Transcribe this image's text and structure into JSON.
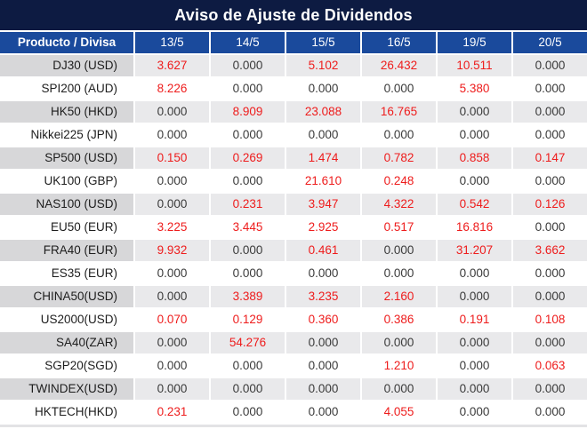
{
  "title": "Aviso de Ajuste de Dividendos",
  "chart_data": {
    "type": "table",
    "title": "Aviso de Ajuste de Dividendos",
    "product_header": "Producto / Divisa",
    "date_headers": [
      "13/5",
      "14/5",
      "15/5",
      "16/5",
      "19/5",
      "20/5"
    ],
    "rows": [
      {
        "product": "DJ30 (USD)",
        "values": [
          "3.627",
          "0.000",
          "5.102",
          "26.432",
          "10.511",
          "0.000"
        ],
        "red": [
          true,
          false,
          true,
          true,
          true,
          false
        ]
      },
      {
        "product": "SPI200 (AUD)",
        "values": [
          "8.226",
          "0.000",
          "0.000",
          "0.000",
          "5.380",
          "0.000"
        ],
        "red": [
          true,
          false,
          false,
          false,
          true,
          false
        ]
      },
      {
        "product": "HK50 (HKD)",
        "values": [
          "0.000",
          "8.909",
          "23.088",
          "16.765",
          "0.000",
          "0.000"
        ],
        "red": [
          false,
          true,
          true,
          true,
          false,
          false
        ]
      },
      {
        "product": "Nikkei225 (JPN)",
        "values": [
          "0.000",
          "0.000",
          "0.000",
          "0.000",
          "0.000",
          "0.000"
        ],
        "red": [
          false,
          false,
          false,
          false,
          false,
          false
        ]
      },
      {
        "product": "SP500 (USD)",
        "values": [
          "0.150",
          "0.269",
          "1.474",
          "0.782",
          "0.858",
          "0.147"
        ],
        "red": [
          true,
          true,
          true,
          true,
          true,
          true
        ]
      },
      {
        "product": "UK100 (GBP)",
        "values": [
          "0.000",
          "0.000",
          "21.610",
          "0.248",
          "0.000",
          "0.000"
        ],
        "red": [
          false,
          false,
          true,
          true,
          false,
          false
        ]
      },
      {
        "product": "NAS100 (USD)",
        "values": [
          "0.000",
          "0.231",
          "3.947",
          "4.322",
          "0.542",
          "0.126"
        ],
        "red": [
          false,
          true,
          true,
          true,
          true,
          true
        ]
      },
      {
        "product": "EU50 (EUR)",
        "values": [
          "3.225",
          "3.445",
          "2.925",
          "0.517",
          "16.816",
          "0.000"
        ],
        "red": [
          true,
          true,
          true,
          true,
          true,
          false
        ]
      },
      {
        "product": "FRA40 (EUR)",
        "values": [
          "9.932",
          "0.000",
          "0.461",
          "0.000",
          "31.207",
          "3.662"
        ],
        "red": [
          true,
          false,
          true,
          false,
          true,
          true
        ]
      },
      {
        "product": "ES35 (EUR)",
        "values": [
          "0.000",
          "0.000",
          "0.000",
          "0.000",
          "0.000",
          "0.000"
        ],
        "red": [
          false,
          false,
          false,
          false,
          false,
          false
        ]
      },
      {
        "product": "CHINA50(USD)",
        "values": [
          "0.000",
          "3.389",
          "3.235",
          "2.160",
          "0.000",
          "0.000"
        ],
        "red": [
          false,
          true,
          true,
          true,
          false,
          false
        ]
      },
      {
        "product": "US2000(USD)",
        "values": [
          "0.070",
          "0.129",
          "0.360",
          "0.386",
          "0.191",
          "0.108"
        ],
        "red": [
          true,
          true,
          true,
          true,
          true,
          true
        ]
      },
      {
        "product": "SA40(ZAR)",
        "values": [
          "0.000",
          "54.276",
          "0.000",
          "0.000",
          "0.000",
          "0.000"
        ],
        "red": [
          false,
          true,
          false,
          false,
          false,
          false
        ]
      },
      {
        "product": "SGP20(SGD)",
        "values": [
          "0.000",
          "0.000",
          "0.000",
          "1.210",
          "0.000",
          "0.063"
        ],
        "red": [
          false,
          false,
          false,
          true,
          false,
          true
        ]
      },
      {
        "product": "TWINDEX(USD)",
        "values": [
          "0.000",
          "0.000",
          "0.000",
          "0.000",
          "0.000",
          "0.000"
        ],
        "red": [
          false,
          false,
          false,
          false,
          false,
          false
        ]
      },
      {
        "product": "HKTECH(HKD)",
        "values": [
          "0.231",
          "0.000",
          "0.000",
          "4.055",
          "0.000",
          "0.000"
        ],
        "red": [
          true,
          false,
          false,
          true,
          false,
          false
        ]
      }
    ]
  },
  "colors": {
    "title_bg": "#0d1b42",
    "header_bg": "#1a4a9c",
    "header_text": "#ffffff",
    "stripe_product_bg": "#d7d7d9",
    "stripe_value_bg": "#e9e9eb",
    "product_text": "#1d1d1d",
    "value_text": "#3a3a3a",
    "red_value": "#ee1c1c",
    "bottom_strip": "#e3e3e5"
  }
}
